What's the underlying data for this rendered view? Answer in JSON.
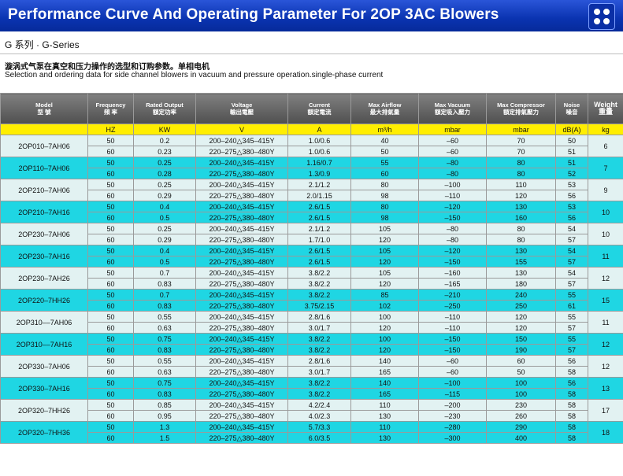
{
  "header": {
    "title": "Performance Curve And Operating Parameter For 2OP 3AC Blowers",
    "menu_icon": "four-dots-grid-icon"
  },
  "series_title": "G 系列 · G-Series",
  "description_cn": "漩涡式气泵在真空和压力操作的选型和订购参数。单相电机",
  "description_en": "Selection and ordering data for side channel blowers in vacuum and pressure operation.single-phase current",
  "colors": {
    "banner": "#0a33b0",
    "unit_row": "#ffee00",
    "cyan_group": "#1fd6e3",
    "light_group": "#e2f2f2",
    "header_row": "#5a5a5a"
  },
  "table": {
    "columns": [
      {
        "en": "Model",
        "cn": "型 號"
      },
      {
        "en": "Frequency",
        "cn": "頻 率"
      },
      {
        "en": "Rated Output",
        "cn": "額定功率"
      },
      {
        "en": "Voltage",
        "cn": "輸出電壓"
      },
      {
        "en": "Current",
        "cn": "額定電流"
      },
      {
        "en": "Max Airflow",
        "cn": "最大排氣量"
      },
      {
        "en": "Max Vacuum",
        "cn": "額定吸入壓力"
      },
      {
        "en": "Max Compressor",
        "cn": "額定排氣壓力"
      },
      {
        "en": "Noise",
        "cn": "噪音"
      },
      {
        "en": "Weight",
        "cn": "重量"
      }
    ],
    "units": [
      "",
      "HZ",
      "KW",
      "V",
      "A",
      "m³/h",
      "mbar",
      "mbar",
      "dB(A)",
      "kg"
    ],
    "groups": [
      {
        "model": "2OP010–7AH06",
        "weight": "6",
        "rows": [
          {
            "freq": "50",
            "power": "0.2",
            "voltage": "200–240△345–415Y",
            "current": "1.0/0.6",
            "airflow": "40",
            "vacuum": "–60",
            "compressor": "70",
            "noise": "50"
          },
          {
            "freq": "60",
            "power": "0.23",
            "voltage": "220–275△380–480Y",
            "current": "1.0/0.6",
            "airflow": "50",
            "vacuum": "–60",
            "compressor": "70",
            "noise": "51"
          }
        ]
      },
      {
        "model": "2OP110–7AH06",
        "weight": "7",
        "rows": [
          {
            "freq": "50",
            "power": "0.25",
            "voltage": "200–240△345–415Y",
            "current": "1.16/0.7",
            "airflow": "55",
            "vacuum": "–80",
            "compressor": "80",
            "noise": "51"
          },
          {
            "freq": "60",
            "power": "0.28",
            "voltage": "220–275△380–480Y",
            "current": "1.3/0.9",
            "airflow": "60",
            "vacuum": "–80",
            "compressor": "80",
            "noise": "52"
          }
        ]
      },
      {
        "model": "2OP210–7AH06",
        "weight": "9",
        "rows": [
          {
            "freq": "50",
            "power": "0.25",
            "voltage": "200–240△345–415Y",
            "current": "2.1/1.2",
            "airflow": "80",
            "vacuum": "–100",
            "compressor": "110",
            "noise": "53"
          },
          {
            "freq": "60",
            "power": "0.29",
            "voltage": "220–275△380–480Y",
            "current": "2.0/1.15",
            "airflow": "98",
            "vacuum": "–110",
            "compressor": "120",
            "noise": "56"
          }
        ]
      },
      {
        "model": "2OP210–7AH16",
        "weight": "10",
        "rows": [
          {
            "freq": "50",
            "power": "0.4",
            "voltage": "200–240△345–415Y",
            "current": "2.6/1.5",
            "airflow": "80",
            "vacuum": "–120",
            "compressor": "130",
            "noise": "53"
          },
          {
            "freq": "60",
            "power": "0.5",
            "voltage": "220–275△380–480Y",
            "current": "2.6/1.5",
            "airflow": "98",
            "vacuum": "–150",
            "compressor": "160",
            "noise": "56"
          }
        ]
      },
      {
        "model": "2OP230–7AH06",
        "weight": "10",
        "rows": [
          {
            "freq": "50",
            "power": "0.25",
            "voltage": "200–240△345–415Y",
            "current": "2.1/1.2",
            "airflow": "105",
            "vacuum": "–80",
            "compressor": "80",
            "noise": "54"
          },
          {
            "freq": "60",
            "power": "0.29",
            "voltage": "220–275△380–480Y",
            "current": "1.7/1.0",
            "airflow": "120",
            "vacuum": "–80",
            "compressor": "80",
            "noise": "57"
          }
        ]
      },
      {
        "model": "2OP230–7AH16",
        "weight": "11",
        "rows": [
          {
            "freq": "50",
            "power": "0.4",
            "voltage": "200–240△345–415Y",
            "current": "2.6/1.5",
            "airflow": "105",
            "vacuum": "–120",
            "compressor": "130",
            "noise": "54"
          },
          {
            "freq": "60",
            "power": "0.5",
            "voltage": "220–275△380–480Y",
            "current": "2.6/1.5",
            "airflow": "120",
            "vacuum": "–150",
            "compressor": "155",
            "noise": "57"
          }
        ]
      },
      {
        "model": "2OP230–7AH26",
        "weight": "12",
        "rows": [
          {
            "freq": "50",
            "power": "0.7",
            "voltage": "200–240△345–415Y",
            "current": "3.8/2.2",
            "airflow": "105",
            "vacuum": "–160",
            "compressor": "130",
            "noise": "54"
          },
          {
            "freq": "60",
            "power": "0.83",
            "voltage": "220–275△380–480Y",
            "current": "3.8/2.2",
            "airflow": "120",
            "vacuum": "–165",
            "compressor": "180",
            "noise": "57"
          }
        ]
      },
      {
        "model": "2OP220–7HH26",
        "weight": "15",
        "rows": [
          {
            "freq": "50",
            "power": "0.7",
            "voltage": "200–240△345–415Y",
            "current": "3.8/2.2",
            "airflow": "85",
            "vacuum": "–210",
            "compressor": "240",
            "noise": "55"
          },
          {
            "freq": "60",
            "power": "0.83",
            "voltage": "220–275△380–480Y",
            "current": "3.75/2.15",
            "airflow": "102",
            "vacuum": "–250",
            "compressor": "250",
            "noise": "61"
          }
        ]
      },
      {
        "model": "2OP310––7AH06",
        "weight": "11",
        "rows": [
          {
            "freq": "50",
            "power": "0.55",
            "voltage": "200–240△345–415Y",
            "current": "2.8/1.6",
            "airflow": "100",
            "vacuum": "–110",
            "compressor": "120",
            "noise": "55"
          },
          {
            "freq": "60",
            "power": "0.63",
            "voltage": "220–275△380–480Y",
            "current": "3.0/1.7",
            "airflow": "120",
            "vacuum": "–110",
            "compressor": "120",
            "noise": "57"
          }
        ]
      },
      {
        "model": "2OP310––7AH16",
        "weight": "12",
        "rows": [
          {
            "freq": "50",
            "power": "0.75",
            "voltage": "200–240△345–415Y",
            "current": "3.8/2.2",
            "airflow": "100",
            "vacuum": "–150",
            "compressor": "150",
            "noise": "55"
          },
          {
            "freq": "60",
            "power": "0.83",
            "voltage": "220–275△380–480Y",
            "current": "3.8/2.2",
            "airflow": "120",
            "vacuum": "–150",
            "compressor": "190",
            "noise": "57"
          }
        ]
      },
      {
        "model": "2OP330–7AH06",
        "weight": "12",
        "rows": [
          {
            "freq": "50",
            "power": "0.55",
            "voltage": "200–240△345–415Y",
            "current": "2.8/1.6",
            "airflow": "140",
            "vacuum": "–60",
            "compressor": "60",
            "noise": "56"
          },
          {
            "freq": "60",
            "power": "0.63",
            "voltage": "220–275△380–480Y",
            "current": "3.0/1.7",
            "airflow": "165",
            "vacuum": "–60",
            "compressor": "50",
            "noise": "58"
          }
        ]
      },
      {
        "model": "2OP330–7AH16",
        "weight": "13",
        "rows": [
          {
            "freq": "50",
            "power": "0.75",
            "voltage": "200–240△345–415Y",
            "current": "3.8/2.2",
            "airflow": "140",
            "vacuum": "–100",
            "compressor": "100",
            "noise": "56"
          },
          {
            "freq": "60",
            "power": "0.83",
            "voltage": "220–275△380–480Y",
            "current": "3.8/2.2",
            "airflow": "165",
            "vacuum": "–115",
            "compressor": "100",
            "noise": "58"
          }
        ]
      },
      {
        "model": "2OP320–7HH26",
        "weight": "17",
        "rows": [
          {
            "freq": "50",
            "power": "0.85",
            "voltage": "200–240△345–415Y",
            "current": "4.2/2.4",
            "airflow": "110",
            "vacuum": "–200",
            "compressor": "230",
            "noise": "58"
          },
          {
            "freq": "60",
            "power": "0.95",
            "voltage": "220–275△380–480Y",
            "current": "4.0/2.3",
            "airflow": "130",
            "vacuum": "–230",
            "compressor": "260",
            "noise": "58"
          }
        ]
      },
      {
        "model": "2OP320–7HH36",
        "weight": "18",
        "rows": [
          {
            "freq": "50",
            "power": "1.3",
            "voltage": "200–240△345–415Y",
            "current": "5.7/3.3",
            "airflow": "110",
            "vacuum": "–280",
            "compressor": "290",
            "noise": "58"
          },
          {
            "freq": "60",
            "power": "1.5",
            "voltage": "220–275△380–480Y",
            "current": "6.0/3.5",
            "airflow": "130",
            "vacuum": "–300",
            "compressor": "400",
            "noise": "58"
          }
        ]
      }
    ]
  }
}
